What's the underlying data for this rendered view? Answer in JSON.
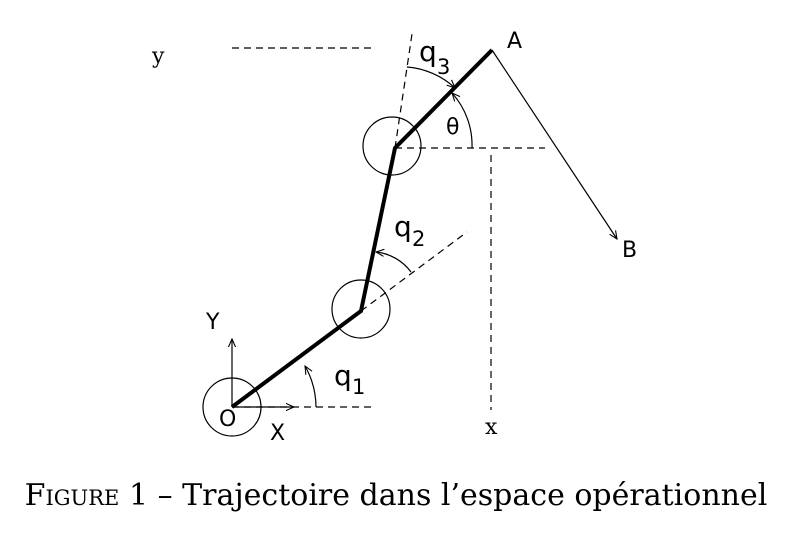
{
  "diagram": {
    "labels": {
      "y": "y",
      "x": "x",
      "A": "A",
      "B": "B",
      "theta": "θ",
      "Y": "Y",
      "X": "X",
      "O": "O",
      "q1": "q",
      "q1_sub": "1",
      "q2": "q",
      "q2_sub": "2",
      "q3": "q",
      "q3_sub": "3"
    }
  },
  "caption": {
    "prefix": "Figure",
    "number": "1",
    "separator": "–",
    "text": "Trajectoire dans l’espace opérationnel"
  }
}
